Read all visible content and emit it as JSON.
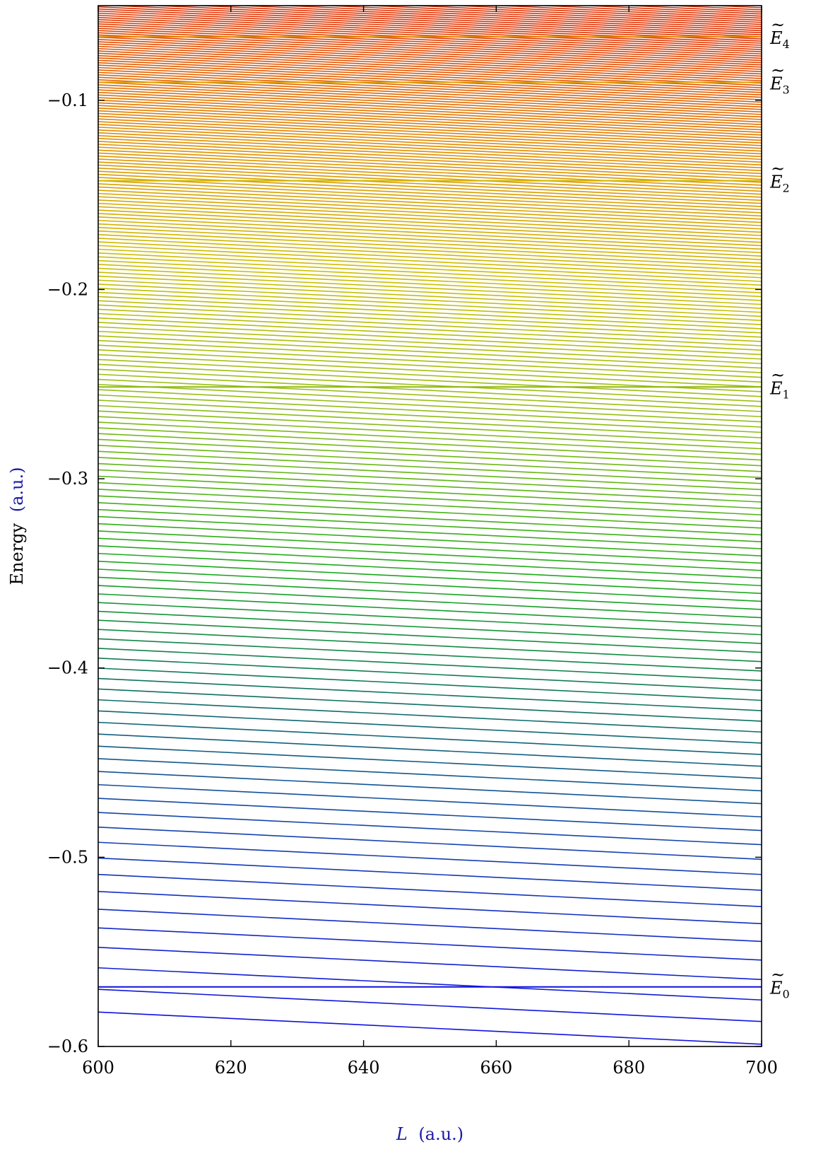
{
  "chart_data": {
    "type": "line",
    "title": "",
    "xlabel": {
      "symbol": "L",
      "unit": "(a.u.)"
    },
    "ylabel": {
      "text": "Energy",
      "unit": "(a.u.)"
    },
    "xlim": [
      600,
      700
    ],
    "ylim": [
      -0.6,
      -0.05
    ],
    "grid": false,
    "x_ticks": [
      600,
      620,
      640,
      660,
      680,
      700
    ],
    "y_ticks": [
      -0.6,
      -0.5,
      -0.4,
      -0.3,
      -0.2,
      -0.1
    ],
    "x_tick_labels": [
      "600",
      "620",
      "640",
      "660",
      "680",
      "700"
    ],
    "y_tick_labels": [
      "−0.6",
      "−0.5",
      "−0.4",
      "−0.3",
      "−0.2",
      "−0.1"
    ],
    "colors": {
      "axis_label_accent": "#1a1aa6",
      "blue": "#1010e0",
      "teal": "#0f6a6a",
      "green": "#1aa81a",
      "yellow": "#c8c800",
      "orange": "#e08a00",
      "red": "#e03000"
    },
    "reference_levels": [
      {
        "label": "E",
        "subscript": "0",
        "y": -0.5685,
        "color": "#1010e0"
      },
      {
        "label": "E",
        "subscript": "1",
        "y": -0.2515,
        "color": "#8cba10"
      },
      {
        "label": "E",
        "subscript": "2",
        "y": -0.1425,
        "color": "#d0b800"
      },
      {
        "label": "E",
        "subscript": "3",
        "y": -0.0905,
        "color": "#dca000"
      },
      {
        "label": "E",
        "subscript": "4",
        "y": -0.0665,
        "color": "#e08400"
      }
    ],
    "continuum_lines": {
      "description_count": 200,
      "x_start": 600,
      "x_end": 700,
      "slope_per_unit_x": -0.00017,
      "first_line_y_at_x600": -0.5818,
      "last_line_y_at_x600": -0.05,
      "y_spacing_at_x600_bottom": 0.012,
      "y_spacing_at_x600_top": 0.0011
    }
  }
}
